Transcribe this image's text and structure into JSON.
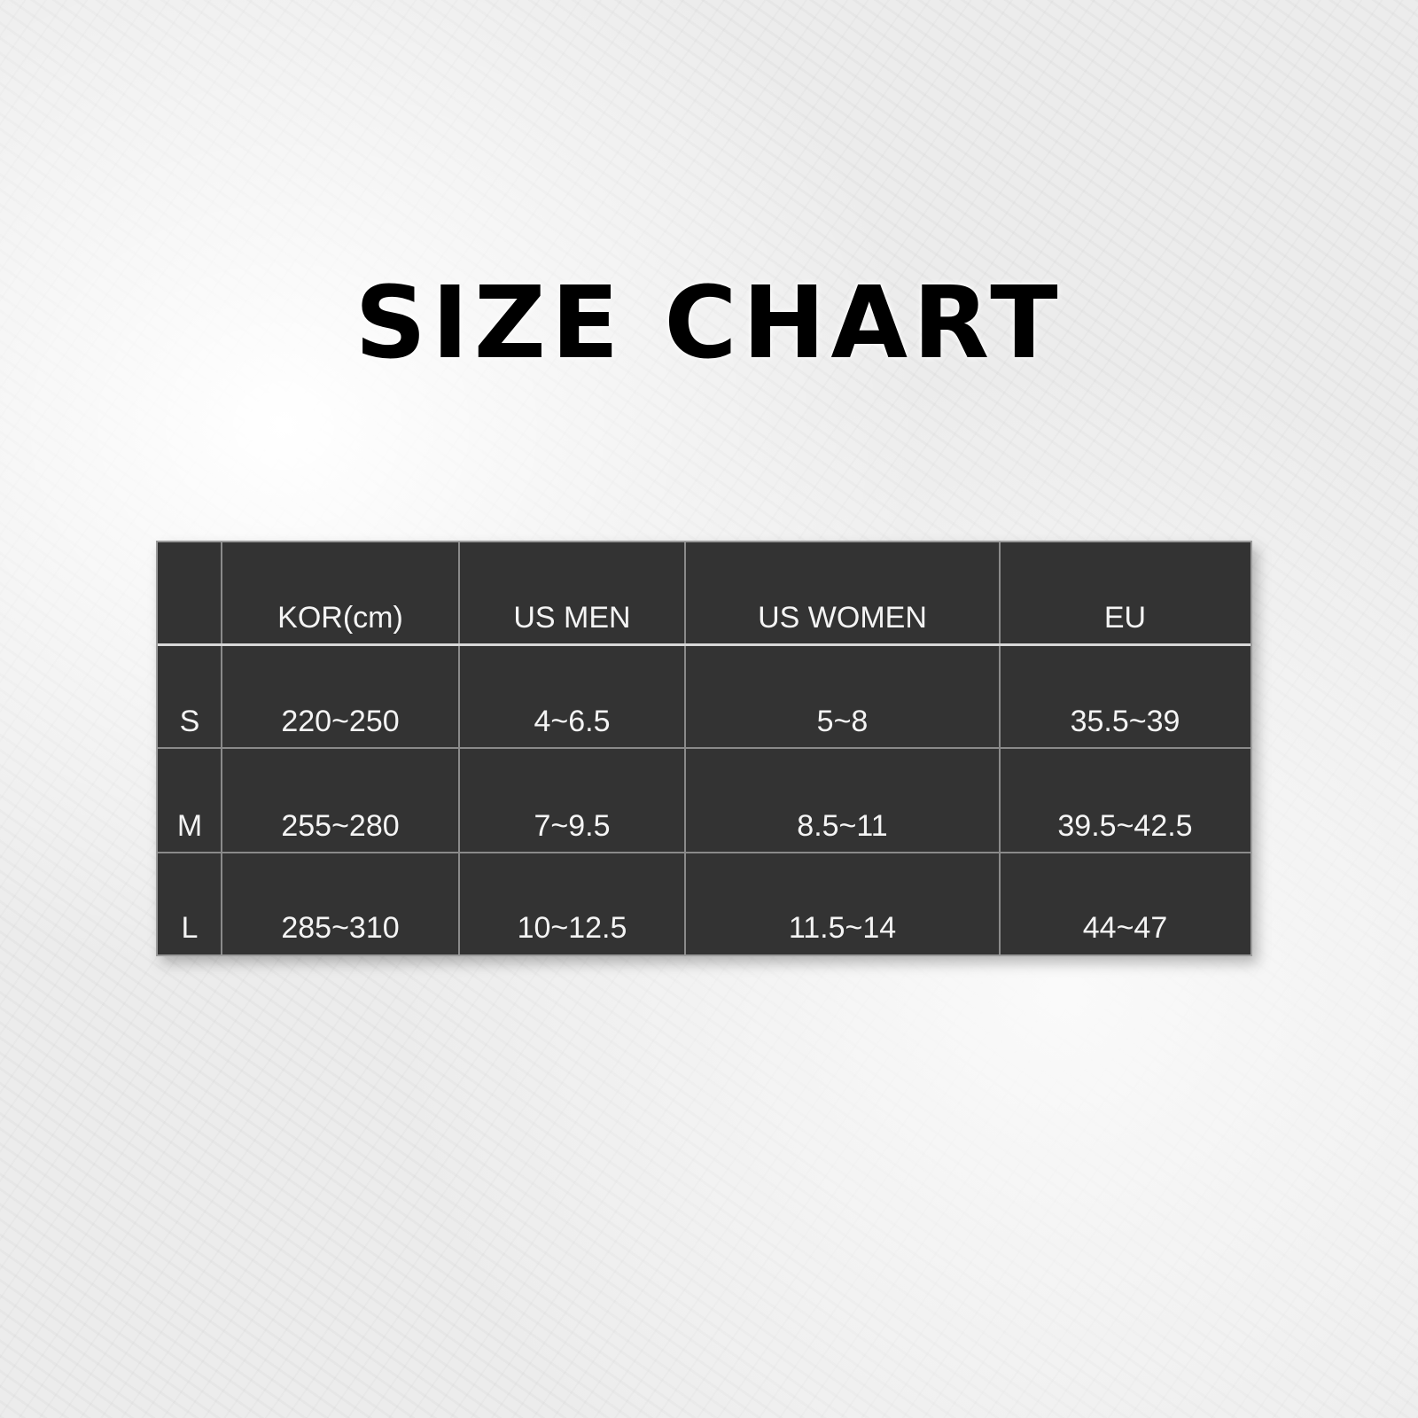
{
  "title": "SIZE CHART",
  "table": {
    "headers": [
      "",
      "KOR(cm)",
      "US MEN",
      "US WOMEN",
      "EU"
    ],
    "rows": [
      [
        "S",
        "220~250",
        "4~6.5",
        "5~8",
        "35.5~39"
      ],
      [
        "M",
        "255~280",
        "7~9.5",
        "8.5~11",
        "39.5~42.5"
      ],
      [
        "L",
        "285~310",
        "10~12.5",
        "11.5~14",
        "44~47"
      ]
    ]
  },
  "colors": {
    "table_bg": "#333333",
    "text": "#f4f4f4",
    "title": "#000000"
  }
}
